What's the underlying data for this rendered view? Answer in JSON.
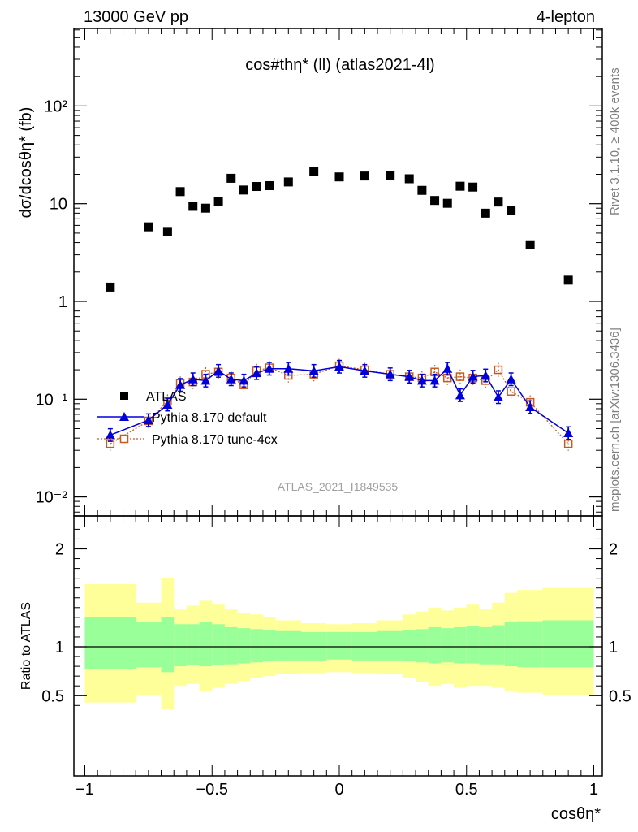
{
  "header": {
    "left": "13000 GeV pp",
    "right": "4-lepton"
  },
  "side": {
    "rivet": "Rivet 3.1.10, ≥ 400k events",
    "mcplots": "mcplots.cern.ch [arXiv:1306.3436]"
  },
  "chart_data": [
    {
      "type": "scatter",
      "title": "cos#thη* (ll) (atlas2021-4l)",
      "ylabel": "dσ/dcosθη* (fb)",
      "xlabel": "cosθη*",
      "yscale": "log",
      "xlim": [
        -1.05,
        1.05
      ],
      "ylim": [
        0.007,
        1000
      ],
      "analysis_id": "ATLAS_2021_I1849535",
      "legend": [
        "ATLAS",
        "Pythia 8.170 default",
        "Pythia 8.170 tune-4cx"
      ],
      "legend_placement": "lower-left",
      "x_ticks": [
        "−1",
        "−0.5",
        "0",
        "0.5",
        "1"
      ],
      "y_ticks": [
        "10⁻²",
        "10⁻¹",
        "1",
        "10",
        "10²"
      ],
      "x": [
        -0.9,
        -0.75,
        -0.675,
        -0.625,
        -0.575,
        -0.525,
        -0.475,
        -0.425,
        -0.375,
        -0.325,
        -0.275,
        -0.2,
        -0.1,
        0.0,
        0.1,
        0.2,
        0.275,
        0.325,
        0.375,
        0.425,
        0.475,
        0.525,
        0.575,
        0.625,
        0.675,
        0.75,
        0.9
      ],
      "series": [
        {
          "name": "ATLAS",
          "color": "#000000",
          "marker": "square",
          "values": [
            1.4,
            5.8,
            5.2,
            13.3,
            9.4,
            9.0,
            10.6,
            18.2,
            13.8,
            15.0,
            15.3,
            16.7,
            21.2,
            18.8,
            19.2,
            19.6,
            18.0,
            13.7,
            10.8,
            10.1,
            15.1,
            14.8,
            8.0,
            10.4,
            8.6,
            3.8,
            1.65
          ]
        },
        {
          "name": "Pythia 8.170 default",
          "color": "#0000dd",
          "marker": "triangle",
          "line": "solid",
          "values": [
            0.043,
            0.061,
            0.088,
            0.14,
            0.16,
            0.155,
            0.195,
            0.16,
            0.155,
            0.185,
            0.205,
            0.205,
            0.195,
            0.215,
            0.195,
            0.18,
            0.17,
            0.155,
            0.155,
            0.205,
            0.11,
            0.17,
            0.175,
            0.105,
            0.16,
            0.083,
            0.045
          ]
        },
        {
          "name": "Pythia 8.170 tune-4cx",
          "color": "#c85a1e",
          "marker": "open-square",
          "line": "dotted",
          "values": [
            0.035,
            0.06,
            0.095,
            0.145,
            0.15,
            0.18,
            0.19,
            0.165,
            0.14,
            0.195,
            0.21,
            0.175,
            0.18,
            0.22,
            0.2,
            0.18,
            0.17,
            0.165,
            0.19,
            0.165,
            0.17,
            0.165,
            0.155,
            0.2,
            0.12,
            0.093,
            0.035
          ]
        }
      ]
    },
    {
      "type": "area",
      "ylabel": "Ratio to ATLAS",
      "xlabel": "cosθη*",
      "xlim": [
        -1.05,
        1.05
      ],
      "ylim": [
        0.35,
        2.3
      ],
      "x_ticks": [
        "−1",
        "−0.5",
        "0",
        "0.5",
        "1"
      ],
      "y_ticks": [
        "0.5",
        "1",
        "2"
      ],
      "bin_edges": [
        -1.0,
        -0.8,
        -0.7,
        -0.65,
        -0.6,
        -0.55,
        -0.5,
        -0.45,
        -0.4,
        -0.35,
        -0.3,
        -0.25,
        -0.15,
        -0.05,
        0.05,
        0.15,
        0.25,
        0.3,
        0.35,
        0.4,
        0.45,
        0.5,
        0.55,
        0.6,
        0.65,
        0.7,
        0.8,
        1.0
      ],
      "bands": [
        {
          "name": "yellow",
          "color": "#ffff99",
          "lo": [
            0.43,
            0.5,
            0.36,
            0.6,
            0.62,
            0.55,
            0.58,
            0.62,
            0.65,
            0.68,
            0.7,
            0.72,
            0.73,
            0.74,
            0.73,
            0.72,
            0.68,
            0.64,
            0.6,
            0.62,
            0.58,
            0.6,
            0.6,
            0.58,
            0.55,
            0.53,
            0.51
          ],
          "hi": [
            1.64,
            1.45,
            1.7,
            1.38,
            1.42,
            1.47,
            1.43,
            1.38,
            1.34,
            1.33,
            1.3,
            1.27,
            1.24,
            1.23,
            1.24,
            1.27,
            1.33,
            1.36,
            1.4,
            1.37,
            1.4,
            1.43,
            1.38,
            1.45,
            1.55,
            1.58,
            1.6
          ]
        },
        {
          "name": "green",
          "color": "#99ff99",
          "lo": [
            0.77,
            0.79,
            0.74,
            0.8,
            0.81,
            0.8,
            0.81,
            0.82,
            0.83,
            0.84,
            0.85,
            0.86,
            0.86,
            0.87,
            0.86,
            0.86,
            0.85,
            0.84,
            0.83,
            0.84,
            0.83,
            0.83,
            0.82,
            0.82,
            0.8,
            0.79,
            0.79
          ]
        },
        {
          "name": "green-hi",
          "color": "#99ff99",
          "hi": [
            1.3,
            1.25,
            1.3,
            1.23,
            1.23,
            1.25,
            1.23,
            1.2,
            1.19,
            1.18,
            1.17,
            1.16,
            1.15,
            1.15,
            1.15,
            1.16,
            1.17,
            1.18,
            1.2,
            1.19,
            1.2,
            1.21,
            1.2,
            1.22,
            1.25,
            1.26,
            1.27
          ]
        }
      ]
    }
  ]
}
